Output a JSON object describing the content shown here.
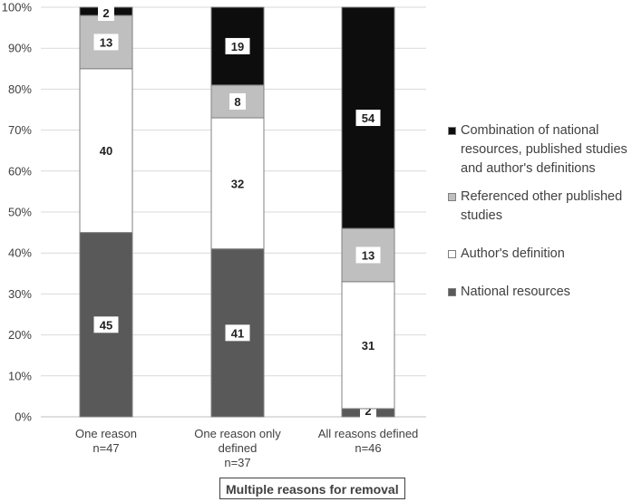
{
  "chart_data": {
    "type": "bar",
    "stacked": true,
    "percent_scale": true,
    "ylim": [
      0,
      100
    ],
    "yticks": [
      "0%",
      "10%",
      "20%",
      "30%",
      "40%",
      "50%",
      "60%",
      "70%",
      "80%",
      "90%",
      "100%"
    ],
    "grid": true,
    "legend_position": "right",
    "xlabel": "Multiple reasons for removal",
    "categories": [
      [
        "One reason",
        "n=47"
      ],
      [
        "One reason only",
        "defined",
        "n=37"
      ],
      [
        "All reasons defined",
        "n=46"
      ]
    ],
    "series": [
      {
        "name": "National resources",
        "color": "#595959",
        "values": [
          45,
          41,
          2
        ]
      },
      {
        "name": "Author's definition",
        "color": "#ffffff",
        "values": [
          40,
          32,
          31
        ]
      },
      {
        "name": "Referenced other published studies",
        "color": "#bfbfbf",
        "values": [
          13,
          8,
          13
        ]
      },
      {
        "name": "Combination of national resources, published studies and author's definitions",
        "color": "#0d0d0d",
        "values": [
          2,
          19,
          54
        ]
      }
    ]
  }
}
